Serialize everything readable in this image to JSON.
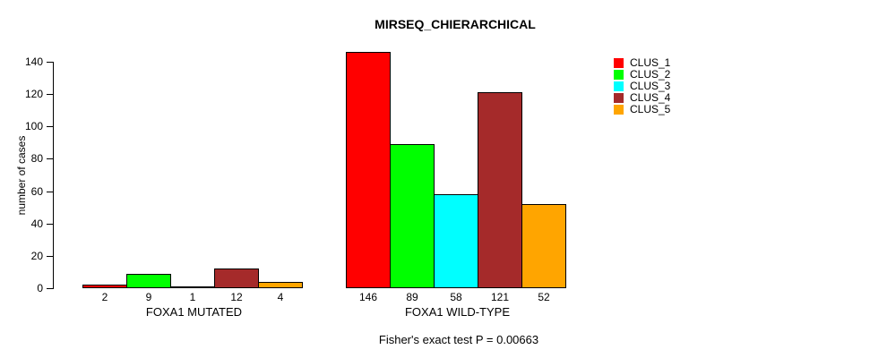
{
  "chart_data": {
    "type": "bar",
    "title": "MIRSEQ_CHIERARCHICAL",
    "xlabel": "",
    "ylabel": "number of cases",
    "ylim": [
      0,
      140
    ],
    "yticks": [
      0,
      20,
      40,
      60,
      80,
      100,
      120,
      140
    ],
    "grid": false,
    "legend_position": "top-right",
    "categories": [
      "FOXA1 MUTATED",
      "FOXA1 WILD-TYPE"
    ],
    "series": [
      {
        "name": "CLUS_1",
        "color": "#FF0000",
        "values": [
          2,
          146
        ]
      },
      {
        "name": "CLUS_2",
        "color": "#00FF00",
        "values": [
          9,
          89
        ]
      },
      {
        "name": "CLUS_3",
        "color": "#00FFFF",
        "values": [
          1,
          58
        ]
      },
      {
        "name": "CLUS_4",
        "color": "#A52A2A",
        "values": [
          12,
          121
        ]
      },
      {
        "name": "CLUS_5",
        "color": "#FFA500",
        "values": [
          4,
          52
        ]
      }
    ],
    "bar_value_labels": [
      [
        2,
        9,
        1,
        12,
        4
      ],
      [
        146,
        89,
        58,
        121,
        52
      ]
    ],
    "annotation": "Fisher's exact test P = 0.00663"
  }
}
